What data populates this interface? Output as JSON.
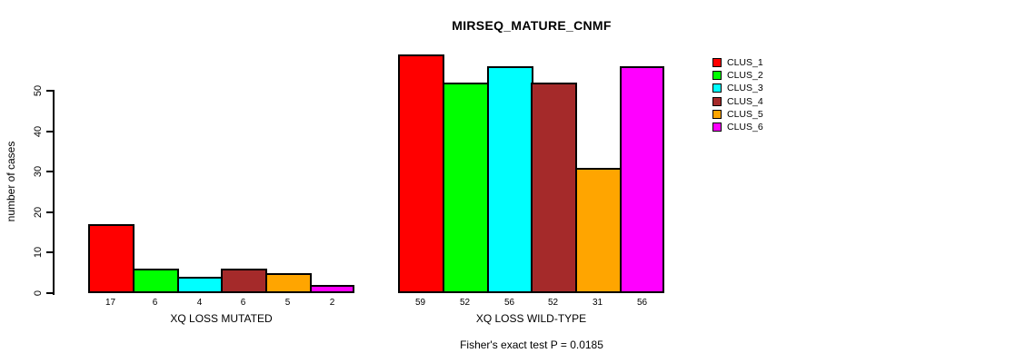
{
  "chart_data": {
    "type": "bar",
    "title": "MIRSEQ_MATURE_CNMF",
    "ylabel": "number of cases",
    "annotation": "Fisher's exact test P = 0.0185",
    "categories": [
      "XQ LOSS MUTATED",
      "XQ LOSS WILD-TYPE"
    ],
    "series": [
      {
        "name": "CLUS_1",
        "color": "#ff0000",
        "values": [
          17,
          59
        ]
      },
      {
        "name": "CLUS_2",
        "color": "#00ff00",
        "values": [
          6,
          52
        ]
      },
      {
        "name": "CLUS_3",
        "color": "#00ffff",
        "values": [
          4,
          56
        ]
      },
      {
        "name": "CLUS_4",
        "color": "#a52a2a",
        "values": [
          6,
          52
        ]
      },
      {
        "name": "CLUS_5",
        "color": "#ffa500",
        "values": [
          5,
          31
        ]
      },
      {
        "name": "CLUS_6",
        "color": "#ff00ff",
        "values": [
          2,
          56
        ]
      }
    ],
    "yticks": [
      0,
      10,
      20,
      30,
      40,
      50
    ],
    "ylim": [
      0,
      59
    ],
    "grid": false,
    "bar_value_labels": true,
    "legend_position": "right",
    "axis_color": "#000000",
    "background_color": "#ffffff"
  }
}
